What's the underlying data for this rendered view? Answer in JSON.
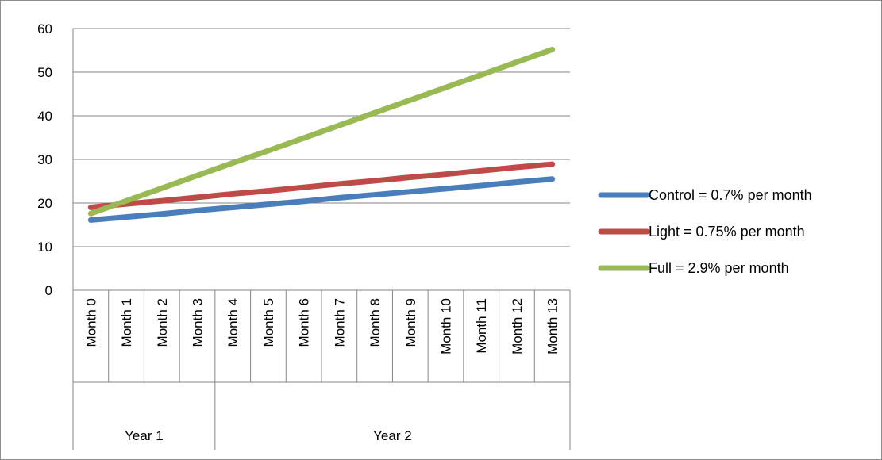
{
  "chart_data": {
    "type": "line",
    "title": "",
    "xlabel": "",
    "ylabel": "",
    "ylim": [
      0,
      60
    ],
    "yticks": [
      "0",
      "10",
      "20",
      "30",
      "40",
      "50",
      "60"
    ],
    "grid": true,
    "legend_position": "right",
    "categories": [
      "Month 0",
      "Month 1",
      "Month 2",
      "Month 3",
      "Month 4",
      "Month 5",
      "Month 6",
      "Month 7",
      "Month 8",
      "Month 9",
      "Month 10",
      "Month 11",
      "Month 12",
      "Month 13"
    ],
    "groups": [
      {
        "label": "Year 1",
        "count": 4
      },
      {
        "label": "Year 2",
        "count": 10
      }
    ],
    "series": [
      {
        "name": "Control = 0.7% per month",
        "color": "#4a7ebb",
        "values": [
          16.1,
          16.8,
          17.5,
          18.3,
          19.0,
          19.7,
          20.4,
          21.2,
          21.9,
          22.6,
          23.3,
          24.0,
          24.8,
          25.5
        ]
      },
      {
        "name": "Light = 0.75% per month",
        "color": "#be4b48",
        "values": [
          19.0,
          19.8,
          20.5,
          21.3,
          22.1,
          22.8,
          23.6,
          24.4,
          25.1,
          25.9,
          26.6,
          27.4,
          28.2,
          28.9
        ]
      },
      {
        "name": "Full = 2.9% per month",
        "color": "#98b954",
        "values": [
          17.6,
          20.5,
          23.4,
          26.3,
          29.2,
          32.0,
          34.9,
          37.8,
          40.7,
          43.6,
          46.5,
          49.4,
          52.3,
          55.2
        ]
      }
    ]
  }
}
